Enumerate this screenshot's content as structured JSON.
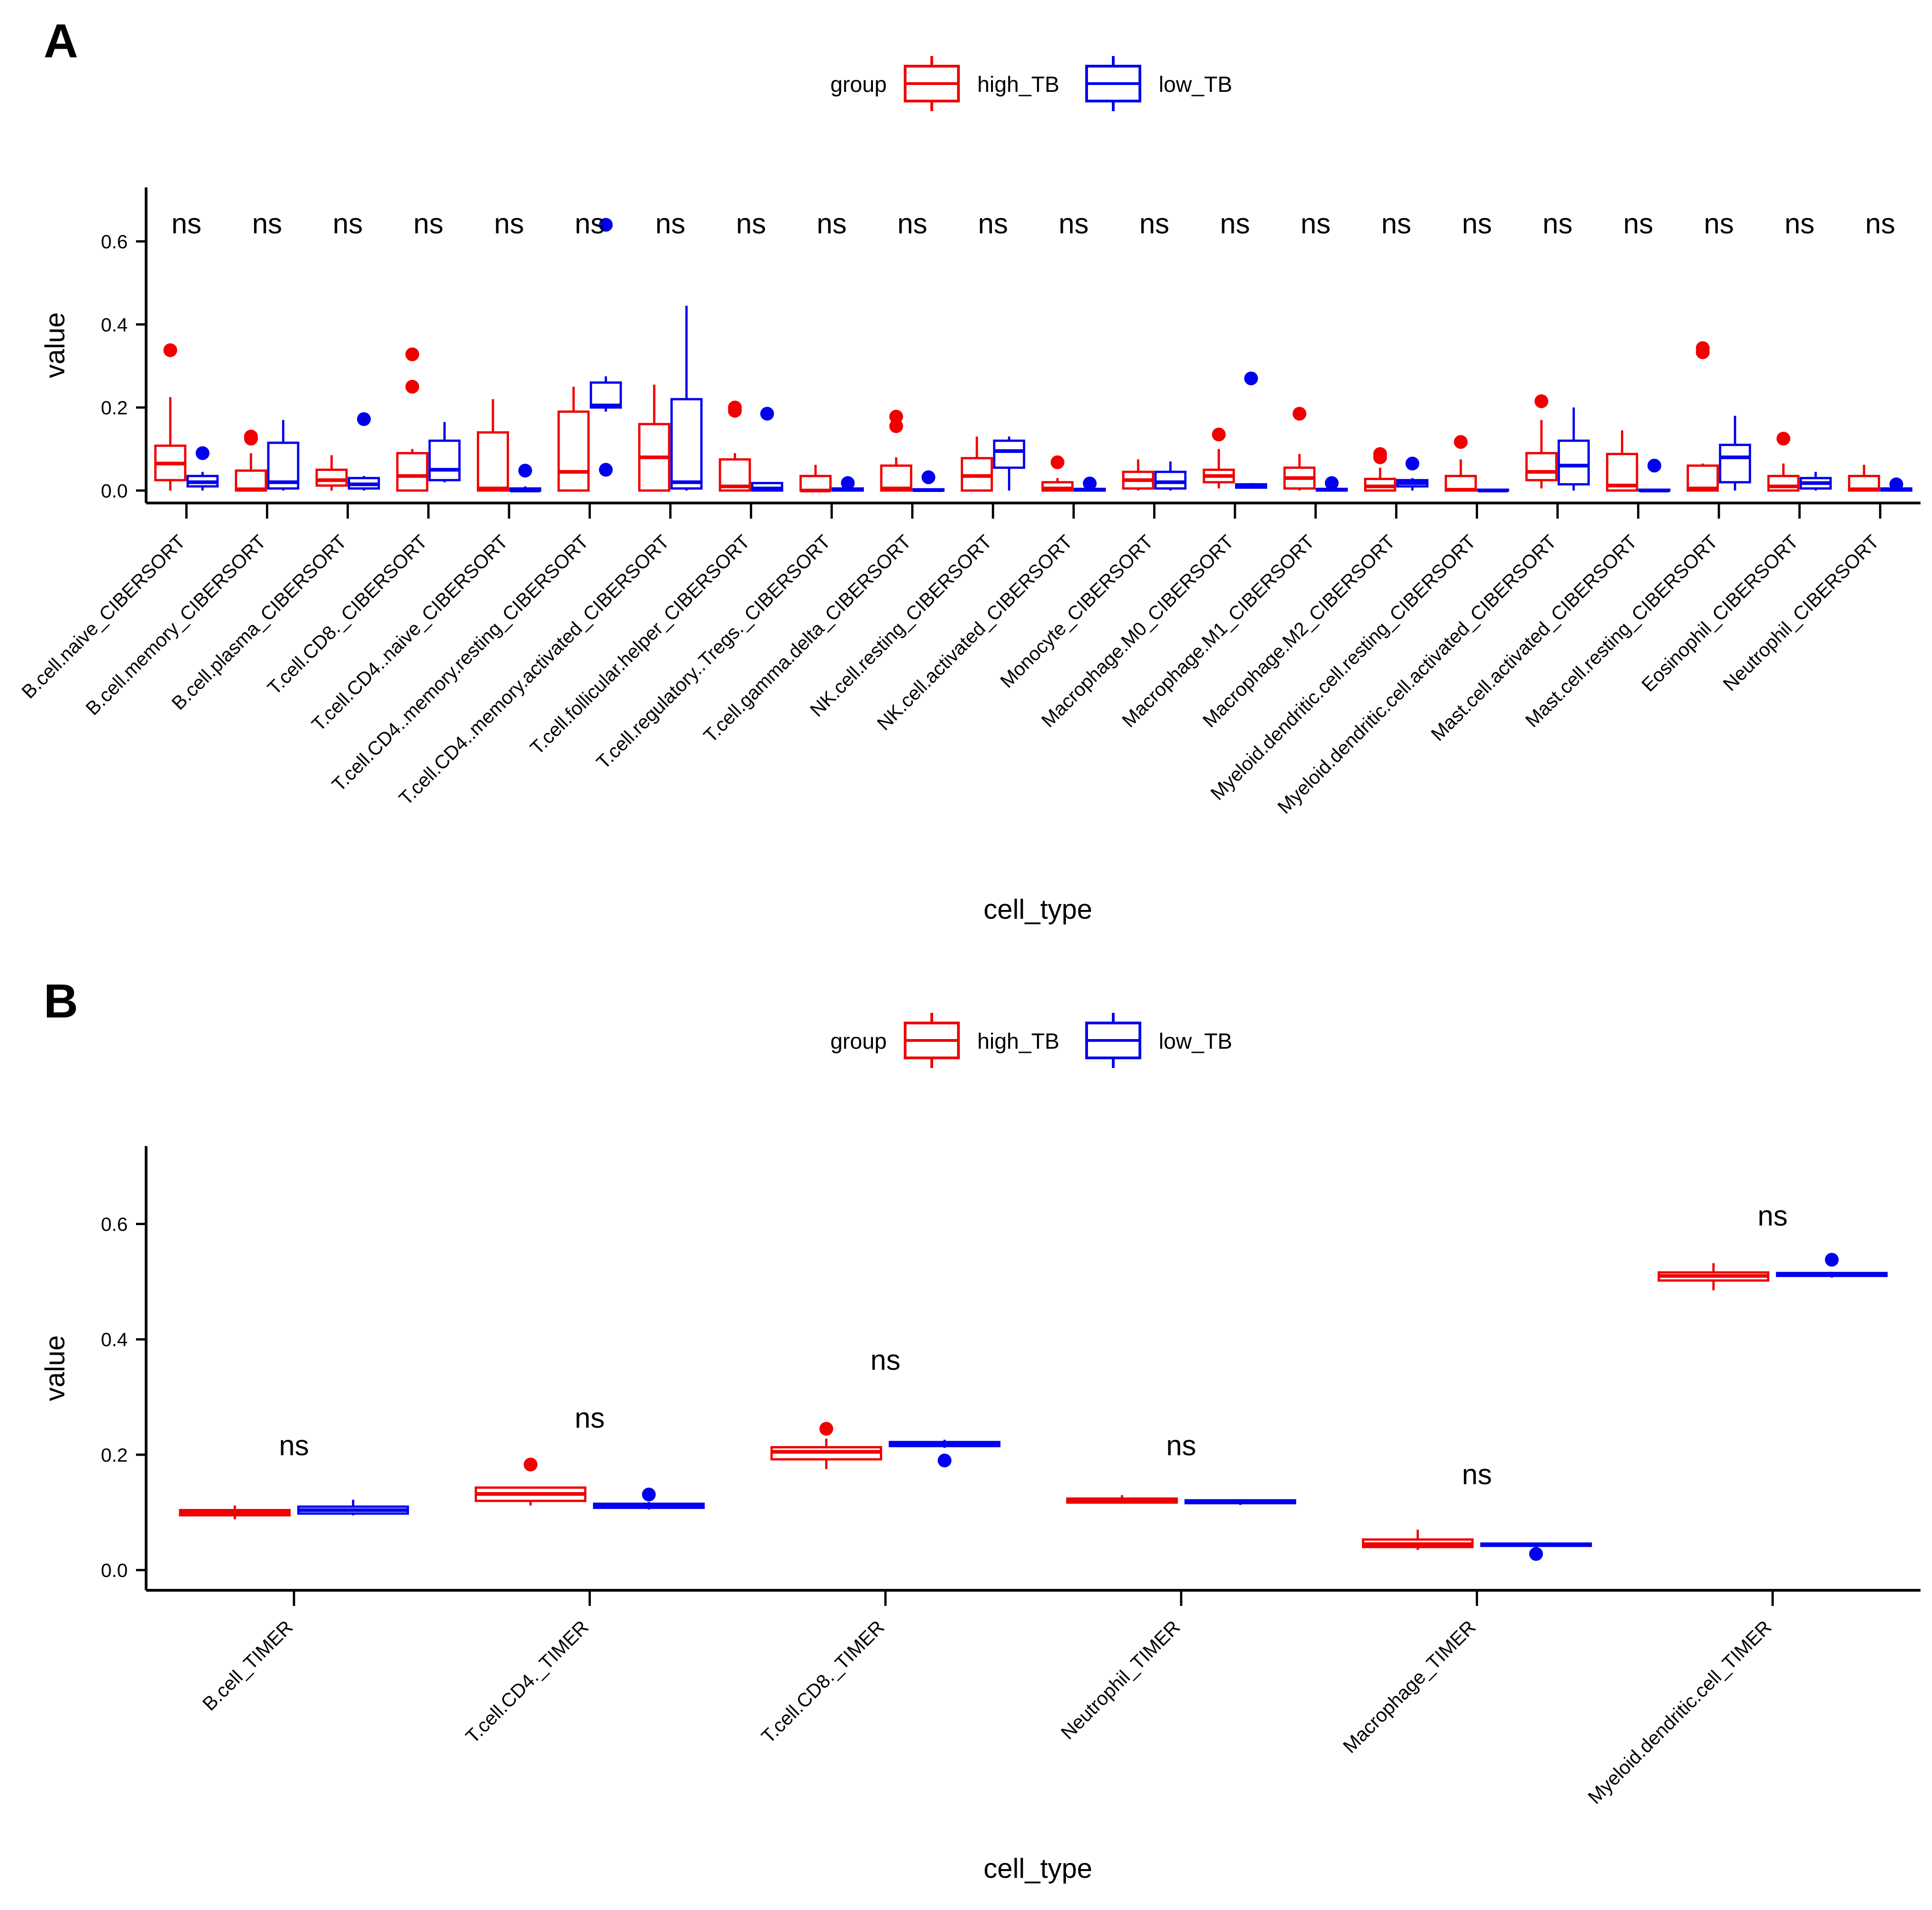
{
  "colors": {
    "high": "#f00000",
    "low": "#0000ee",
    "axis": "#000000"
  },
  "chart_data": [
    {
      "panel": "A",
      "type": "boxplot",
      "legend": {
        "title": "group",
        "items": [
          "high_TB",
          "low_TB"
        ],
        "placement": "top"
      },
      "xlabel": "cell_type",
      "ylabel": "value",
      "ylim": [
        -0.03,
        0.73
      ],
      "yticks": [
        0.0,
        0.2,
        0.4,
        0.6
      ],
      "ytick_labels": [
        "0.0",
        "0.2",
        "0.4",
        "0.6"
      ],
      "categories": [
        "B.cell.naive_CIBERSORT",
        "B.cell.memory_CIBERSORT",
        "B.cell.plasma_CIBERSORT",
        "T.cell.CD8._CIBERSORT",
        "T.cell.CD4..naive_CIBERSORT",
        "T.cell.CD4..memory.resting_CIBERSORT",
        "T.cell.CD4..memory.activated_CIBERSORT",
        "T.cell.follicular.helper_CIBERSORT",
        "T.cell.regulatory..Tregs._CIBERSORT",
        "T.cell.gamma.delta_CIBERSORT",
        "NK.cell.resting_CIBERSORT",
        "NK.cell.activated_CIBERSORT",
        "Monocyte_CIBERSORT",
        "Macrophage.M0_CIBERSORT",
        "Macrophage.M1_CIBERSORT",
        "Macrophage.M2_CIBERSORT",
        "Myeloid.dendritic.cell.resting_CIBERSORT",
        "Myeloid.dendritic.cell.activated_CIBERSORT",
        "Mast.cell.activated_CIBERSORT",
        "Mast.cell.resting_CIBERSORT",
        "Eosinophil_CIBERSORT",
        "Neutrophil_CIBERSORT"
      ],
      "significance": [
        "ns",
        "ns",
        "ns",
        "ns",
        "ns",
        "ns",
        "ns",
        "ns",
        "ns",
        "ns",
        "ns",
        "ns",
        "ns",
        "ns",
        "ns",
        "ns",
        "ns",
        "ns",
        "ns",
        "ns",
        "ns",
        "ns"
      ],
      "series": [
        {
          "name": "high_TB",
          "boxes": [
            {
              "min": 0.0,
              "q1": 0.025,
              "median": 0.065,
              "q3": 0.108,
              "max": 0.225,
              "outliers": [
                0.338
              ]
            },
            {
              "min": 0.0,
              "q1": 0.0,
              "median": 0.003,
              "q3": 0.048,
              "max": 0.09,
              "outliers": [
                0.125,
                0.13
              ]
            },
            {
              "min": 0.0,
              "q1": 0.012,
              "median": 0.025,
              "q3": 0.05,
              "max": 0.085,
              "outliers": []
            },
            {
              "min": 0.0,
              "q1": 0.0,
              "median": 0.035,
              "q3": 0.09,
              "max": 0.1,
              "outliers": [
                0.25,
                0.328
              ]
            },
            {
              "min": 0.0,
              "q1": 0.0,
              "median": 0.005,
              "q3": 0.14,
              "max": 0.22,
              "outliers": []
            },
            {
              "min": 0.0,
              "q1": 0.0,
              "median": 0.045,
              "q3": 0.19,
              "max": 0.25,
              "outliers": []
            },
            {
              "min": 0.0,
              "q1": 0.0,
              "median": 0.08,
              "q3": 0.16,
              "max": 0.255,
              "outliers": []
            },
            {
              "min": 0.0,
              "q1": 0.0,
              "median": 0.01,
              "q3": 0.075,
              "max": 0.09,
              "outliers": [
                0.192,
                0.2
              ]
            },
            {
              "min": 0.0,
              "q1": 0.0,
              "median": 0.0,
              "q3": 0.035,
              "max": 0.062,
              "outliers": []
            },
            {
              "min": 0.0,
              "q1": 0.0,
              "median": 0.005,
              "q3": 0.06,
              "max": 0.08,
              "outliers": [
                0.155,
                0.178
              ]
            },
            {
              "min": 0.0,
              "q1": 0.0,
              "median": 0.035,
              "q3": 0.078,
              "max": 0.13,
              "outliers": []
            },
            {
              "min": 0.0,
              "q1": 0.0,
              "median": 0.005,
              "q3": 0.02,
              "max": 0.03,
              "outliers": [
                0.068
              ]
            },
            {
              "min": 0.0,
              "q1": 0.005,
              "median": 0.025,
              "q3": 0.045,
              "max": 0.075,
              "outliers": []
            },
            {
              "min": 0.005,
              "q1": 0.02,
              "median": 0.035,
              "q3": 0.05,
              "max": 0.1,
              "outliers": [
                0.135
              ]
            },
            {
              "min": 0.0,
              "q1": 0.005,
              "median": 0.03,
              "q3": 0.055,
              "max": 0.088,
              "outliers": [
                0.185
              ]
            },
            {
              "min": 0.0,
              "q1": 0.0,
              "median": 0.01,
              "q3": 0.028,
              "max": 0.055,
              "outliers": [
                0.08,
                0.088
              ]
            },
            {
              "min": 0.0,
              "q1": 0.0,
              "median": 0.002,
              "q3": 0.035,
              "max": 0.075,
              "outliers": [
                0.117
              ]
            },
            {
              "min": 0.005,
              "q1": 0.025,
              "median": 0.045,
              "q3": 0.09,
              "max": 0.17,
              "outliers": [
                0.215
              ]
            },
            {
              "min": 0.0,
              "q1": 0.0,
              "median": 0.012,
              "q3": 0.088,
              "max": 0.145,
              "outliers": []
            },
            {
              "min": 0.0,
              "q1": 0.0,
              "median": 0.005,
              "q3": 0.06,
              "max": 0.065,
              "outliers": [
                0.333,
                0.343
              ]
            },
            {
              "min": 0.0,
              "q1": 0.0,
              "median": 0.01,
              "q3": 0.035,
              "max": 0.065,
              "outliers": [
                0.125
              ]
            },
            {
              "min": 0.0,
              "q1": 0.0,
              "median": 0.003,
              "q3": 0.035,
              "max": 0.062,
              "outliers": []
            }
          ]
        },
        {
          "name": "low_TB",
          "boxes": [
            {
              "min": 0.0,
              "q1": 0.01,
              "median": 0.02,
              "q3": 0.035,
              "max": 0.045,
              "outliers": [
                0.09
              ]
            },
            {
              "min": 0.0,
              "q1": 0.005,
              "median": 0.02,
              "q3": 0.115,
              "max": 0.17,
              "outliers": []
            },
            {
              "min": 0.0,
              "q1": 0.005,
              "median": 0.015,
              "q3": 0.03,
              "max": 0.035,
              "outliers": [
                0.172
              ]
            },
            {
              "min": 0.02,
              "q1": 0.025,
              "median": 0.05,
              "q3": 0.12,
              "max": 0.165,
              "outliers": []
            },
            {
              "min": 0.0,
              "q1": 0.0,
              "median": 0.0,
              "q3": 0.005,
              "max": 0.01,
              "outliers": [
                0.048
              ]
            },
            {
              "min": 0.19,
              "q1": 0.2,
              "median": 0.205,
              "q3": 0.26,
              "max": 0.275,
              "outliers": [
                0.05,
                0.64
              ]
            },
            {
              "min": 0.0,
              "q1": 0.005,
              "median": 0.02,
              "q3": 0.22,
              "max": 0.445,
              "outliers": []
            },
            {
              "min": 0.0,
              "q1": 0.0,
              "median": 0.005,
              "q3": 0.018,
              "max": 0.02,
              "outliers": [
                0.185
              ]
            },
            {
              "min": 0.0,
              "q1": 0.0,
              "median": 0.002,
              "q3": 0.005,
              "max": 0.008,
              "outliers": [
                0.018
              ]
            },
            {
              "min": 0.0,
              "q1": 0.0,
              "median": 0.001,
              "q3": 0.003,
              "max": 0.005,
              "outliers": [
                0.032
              ]
            },
            {
              "min": 0.0,
              "q1": 0.055,
              "median": 0.095,
              "q3": 0.12,
              "max": 0.13,
              "outliers": []
            },
            {
              "min": 0.0,
              "q1": 0.0,
              "median": 0.002,
              "q3": 0.004,
              "max": 0.006,
              "outliers": [
                0.017
              ]
            },
            {
              "min": 0.0,
              "q1": 0.005,
              "median": 0.02,
              "q3": 0.045,
              "max": 0.07,
              "outliers": []
            },
            {
              "min": 0.005,
              "q1": 0.007,
              "median": 0.01,
              "q3": 0.015,
              "max": 0.018,
              "outliers": [
                0.27
              ]
            },
            {
              "min": 0.0,
              "q1": 0.0,
              "median": 0.002,
              "q3": 0.004,
              "max": 0.006,
              "outliers": [
                0.018
              ]
            },
            {
              "min": 0.0,
              "q1": 0.01,
              "median": 0.018,
              "q3": 0.025,
              "max": 0.03,
              "outliers": [
                0.065
              ]
            },
            {
              "min": 0.0,
              "q1": 0.0,
              "median": 0.0,
              "q3": 0.002,
              "max": 0.003,
              "outliers": []
            },
            {
              "min": 0.0,
              "q1": 0.015,
              "median": 0.06,
              "q3": 0.12,
              "max": 0.2,
              "outliers": []
            },
            {
              "min": 0.0,
              "q1": 0.0,
              "median": 0.0,
              "q3": 0.002,
              "max": 0.004,
              "outliers": [
                0.06
              ]
            },
            {
              "min": 0.0,
              "q1": 0.02,
              "median": 0.08,
              "q3": 0.11,
              "max": 0.18,
              "outliers": []
            },
            {
              "min": 0.0,
              "q1": 0.005,
              "median": 0.018,
              "q3": 0.03,
              "max": 0.045,
              "outliers": []
            },
            {
              "min": 0.0,
              "q1": 0.0,
              "median": 0.002,
              "q3": 0.005,
              "max": 0.008,
              "outliers": [
                0.015
              ]
            }
          ]
        }
      ]
    },
    {
      "panel": "B",
      "type": "boxplot",
      "legend": {
        "title": "group",
        "items": [
          "high_TB",
          "low_TB"
        ],
        "placement": "top"
      },
      "xlabel": "cell_type",
      "ylabel": "value",
      "ylim": [
        -0.035,
        0.735
      ],
      "yticks": [
        0.0,
        0.2,
        0.4,
        0.6
      ],
      "ytick_labels": [
        "0.0",
        "0.2",
        "0.4",
        "0.6"
      ],
      "categories": [
        "B.cell_TIMER",
        "T.cell.CD4._TIMER",
        "T.cell.CD8._TIMER",
        "Neutrophil_TIMER",
        "Macrophage_TIMER",
        "Myeloid.dendritic.cell_TIMER"
      ],
      "significance": [
        "ns",
        "ns",
        "ns",
        "ns",
        "ns",
        "ns"
      ],
      "annotation_y": [
        0.215,
        0.263,
        0.363,
        0.215,
        0.165,
        0.613
      ],
      "series": [
        {
          "name": "high_TB",
          "boxes": [
            {
              "min": 0.088,
              "q1": 0.095,
              "median": 0.1,
              "q3": 0.104,
              "max": 0.112,
              "outliers": []
            },
            {
              "min": 0.112,
              "q1": 0.12,
              "median": 0.132,
              "q3": 0.143,
              "max": 0.145,
              "outliers": [
                0.183
              ]
            },
            {
              "min": 0.175,
              "q1": 0.192,
              "median": 0.205,
              "q3": 0.213,
              "max": 0.228,
              "outliers": [
                0.245
              ]
            },
            {
              "min": 0.115,
              "q1": 0.117,
              "median": 0.12,
              "q3": 0.124,
              "max": 0.13,
              "outliers": []
            },
            {
              "min": 0.035,
              "q1": 0.04,
              "median": 0.045,
              "q3": 0.053,
              "max": 0.07,
              "outliers": []
            },
            {
              "min": 0.485,
              "q1": 0.502,
              "median": 0.51,
              "q3": 0.516,
              "max": 0.532,
              "outliers": []
            }
          ]
        },
        {
          "name": "low_TB",
          "boxes": [
            {
              "min": 0.095,
              "q1": 0.098,
              "median": 0.104,
              "q3": 0.11,
              "max": 0.122,
              "outliers": []
            },
            {
              "min": 0.105,
              "q1": 0.108,
              "median": 0.111,
              "q3": 0.115,
              "max": 0.118,
              "outliers": [
                0.131
              ]
            },
            {
              "min": 0.212,
              "q1": 0.215,
              "median": 0.219,
              "q3": 0.222,
              "max": 0.226,
              "outliers": [
                0.19
              ]
            },
            {
              "min": 0.113,
              "q1": 0.116,
              "median": 0.118,
              "q3": 0.121,
              "max": 0.123,
              "outliers": []
            },
            {
              "min": 0.04,
              "q1": 0.042,
              "median": 0.044,
              "q3": 0.046,
              "max": 0.048,
              "outliers": [
                0.028
              ]
            },
            {
              "min": 0.507,
              "q1": 0.51,
              "median": 0.512,
              "q3": 0.515,
              "max": 0.517,
              "outliers": [
                0.538
              ]
            }
          ]
        }
      ]
    }
  ]
}
